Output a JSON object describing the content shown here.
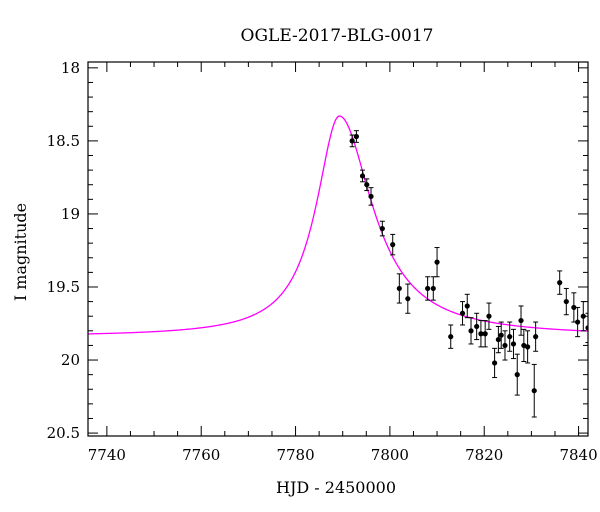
{
  "chart_data": {
    "type": "scatter",
    "title": "OGLE-2017-BLG-0017",
    "xlabel": "HJD - 2450000",
    "ylabel": "I magnitude",
    "xlim": [
      7736,
      7842
    ],
    "ylim": [
      20.52,
      17.96
    ],
    "y_axis_inverted": true,
    "grid": false,
    "legend": "none",
    "x_ticks": [
      7740,
      7760,
      7780,
      7800,
      7820,
      7840
    ],
    "x_tick_labels": [
      "7740",
      "7760",
      "7780",
      "7800",
      "7820",
      "7840"
    ],
    "y_ticks": [
      18,
      18.5,
      19,
      19.5,
      20,
      20.5
    ],
    "y_tick_labels": [
      "18",
      "18.5",
      "19",
      "19.5",
      "20",
      "20.5"
    ],
    "model": {
      "color": "#ff00ff",
      "baseline": 19.84,
      "peak_x": 7789.3,
      "peak_y": 18.33,
      "rise_width": 6.0,
      "fall_width": 8.5
    },
    "series": [
      {
        "marker_color": "#000000",
        "points": [
          {
            "x": 7792.0,
            "y": 18.5,
            "err": 0.04
          },
          {
            "x": 7792.9,
            "y": 18.47,
            "err": 0.04
          },
          {
            "x": 7794.2,
            "y": 18.74,
            "err": 0.04
          },
          {
            "x": 7795.1,
            "y": 18.8,
            "err": 0.04
          },
          {
            "x": 7796.0,
            "y": 18.88,
            "err": 0.06
          },
          {
            "x": 7798.4,
            "y": 19.1,
            "err": 0.05
          },
          {
            "x": 7800.6,
            "y": 19.21,
            "err": 0.07
          },
          {
            "x": 7802.0,
            "y": 19.51,
            "err": 0.1
          },
          {
            "x": 7803.8,
            "y": 19.58,
            "err": 0.1
          },
          {
            "x": 7808.0,
            "y": 19.51,
            "err": 0.08
          },
          {
            "x": 7809.2,
            "y": 19.51,
            "err": 0.08
          },
          {
            "x": 7810.0,
            "y": 19.33,
            "err": 0.1
          },
          {
            "x": 7812.9,
            "y": 19.84,
            "err": 0.08
          },
          {
            "x": 7815.4,
            "y": 19.68,
            "err": 0.08
          },
          {
            "x": 7816.4,
            "y": 19.63,
            "err": 0.08
          },
          {
            "x": 7817.2,
            "y": 19.8,
            "err": 0.09
          },
          {
            "x": 7818.4,
            "y": 19.77,
            "err": 0.09
          },
          {
            "x": 7819.3,
            "y": 19.82,
            "err": 0.09
          },
          {
            "x": 7820.2,
            "y": 19.82,
            "err": 0.09
          },
          {
            "x": 7821.0,
            "y": 19.7,
            "err": 0.09
          },
          {
            "x": 7822.2,
            "y": 20.02,
            "err": 0.1
          },
          {
            "x": 7823.0,
            "y": 19.86,
            "err": 0.09
          },
          {
            "x": 7823.6,
            "y": 19.83,
            "err": 0.09
          },
          {
            "x": 7824.4,
            "y": 19.9,
            "err": 0.1
          },
          {
            "x": 7825.4,
            "y": 19.84,
            "err": 0.1
          },
          {
            "x": 7826.2,
            "y": 19.89,
            "err": 0.1
          },
          {
            "x": 7827.0,
            "y": 20.1,
            "err": 0.14
          },
          {
            "x": 7827.8,
            "y": 19.73,
            "err": 0.1
          },
          {
            "x": 7828.4,
            "y": 19.9,
            "err": 0.11
          },
          {
            "x": 7829.2,
            "y": 19.91,
            "err": 0.11
          },
          {
            "x": 7830.6,
            "y": 20.21,
            "err": 0.18
          },
          {
            "x": 7830.9,
            "y": 19.84,
            "err": 0.1
          },
          {
            "x": 7836.0,
            "y": 19.47,
            "err": 0.08
          },
          {
            "x": 7837.4,
            "y": 19.6,
            "err": 0.09
          },
          {
            "x": 7839.0,
            "y": 19.64,
            "err": 0.1
          },
          {
            "x": 7839.8,
            "y": 19.74,
            "err": 0.1
          },
          {
            "x": 7841.0,
            "y": 19.7,
            "err": 0.1
          },
          {
            "x": 7842.0,
            "y": 19.78,
            "err": 0.1
          }
        ]
      }
    ]
  }
}
